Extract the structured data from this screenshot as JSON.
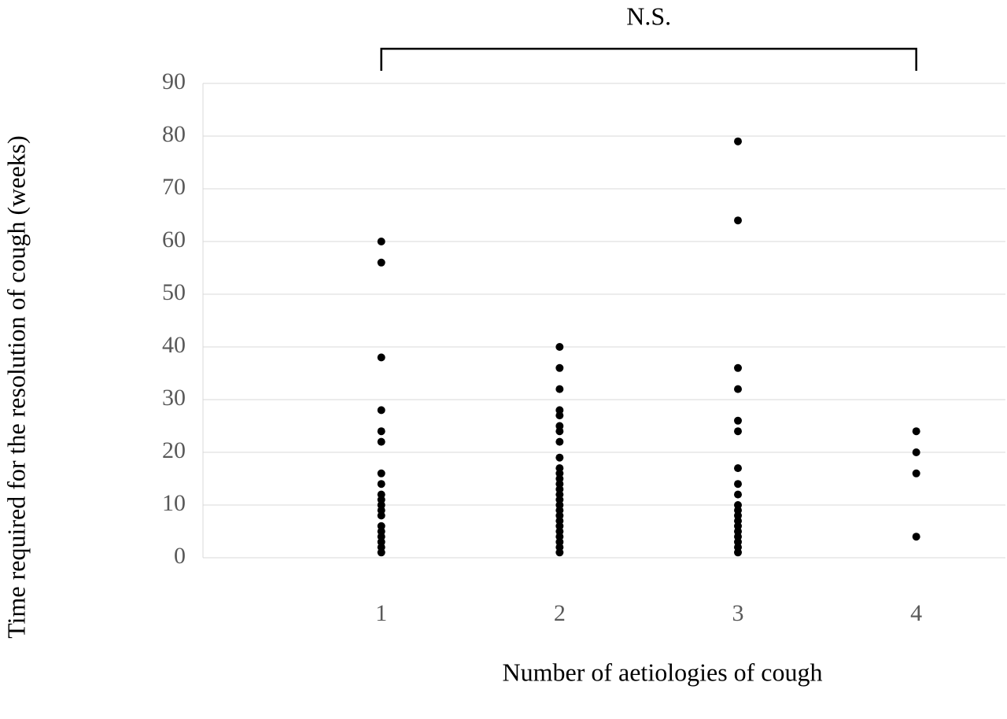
{
  "chart_data": {
    "type": "scatter",
    "xlabel": "Number of aetiologies of cough",
    "ylabel": "Time required for the resolution of cough (weeks)",
    "xlim": [
      0,
      4.5
    ],
    "xticks": [
      1,
      2,
      3,
      4
    ],
    "ylim": [
      0,
      90
    ],
    "yticks": [
      0,
      10,
      20,
      30,
      40,
      50,
      60,
      70,
      80,
      90
    ],
    "grid": true,
    "annotation": {
      "text": "N.S.",
      "x_start": 1,
      "x_end": 4
    },
    "series": [
      {
        "color": "#000000",
        "x": [
          1,
          1,
          1,
          1,
          1,
          1,
          1,
          1,
          1,
          1,
          1,
          1,
          1,
          1,
          1,
          1,
          1,
          1,
          1,
          2,
          2,
          2,
          2,
          2,
          2,
          2,
          2,
          2,
          2,
          2,
          2,
          2,
          2,
          2,
          2,
          2,
          2,
          2,
          2,
          2,
          2,
          2,
          2,
          2,
          2,
          3,
          3,
          3,
          3,
          3,
          3,
          3,
          3,
          3,
          3,
          3,
          3,
          3,
          3,
          3,
          3,
          3,
          3,
          3,
          4,
          4,
          4,
          4
        ],
        "values": [
          60,
          56,
          38,
          28,
          24,
          22,
          16,
          14,
          12,
          11,
          10,
          9,
          8,
          6,
          5,
          4,
          3,
          2,
          1,
          40,
          36,
          32,
          28,
          27,
          25,
          24,
          22,
          19,
          17,
          16,
          15,
          14,
          13,
          12,
          11,
          10,
          9,
          8,
          7,
          6,
          5,
          4,
          3,
          2,
          1,
          79,
          64,
          36,
          32,
          26,
          24,
          17,
          14,
          12,
          10,
          9,
          8,
          7,
          6,
          5,
          4,
          3,
          2,
          1,
          24,
          20,
          16,
          4
        ]
      }
    ]
  }
}
